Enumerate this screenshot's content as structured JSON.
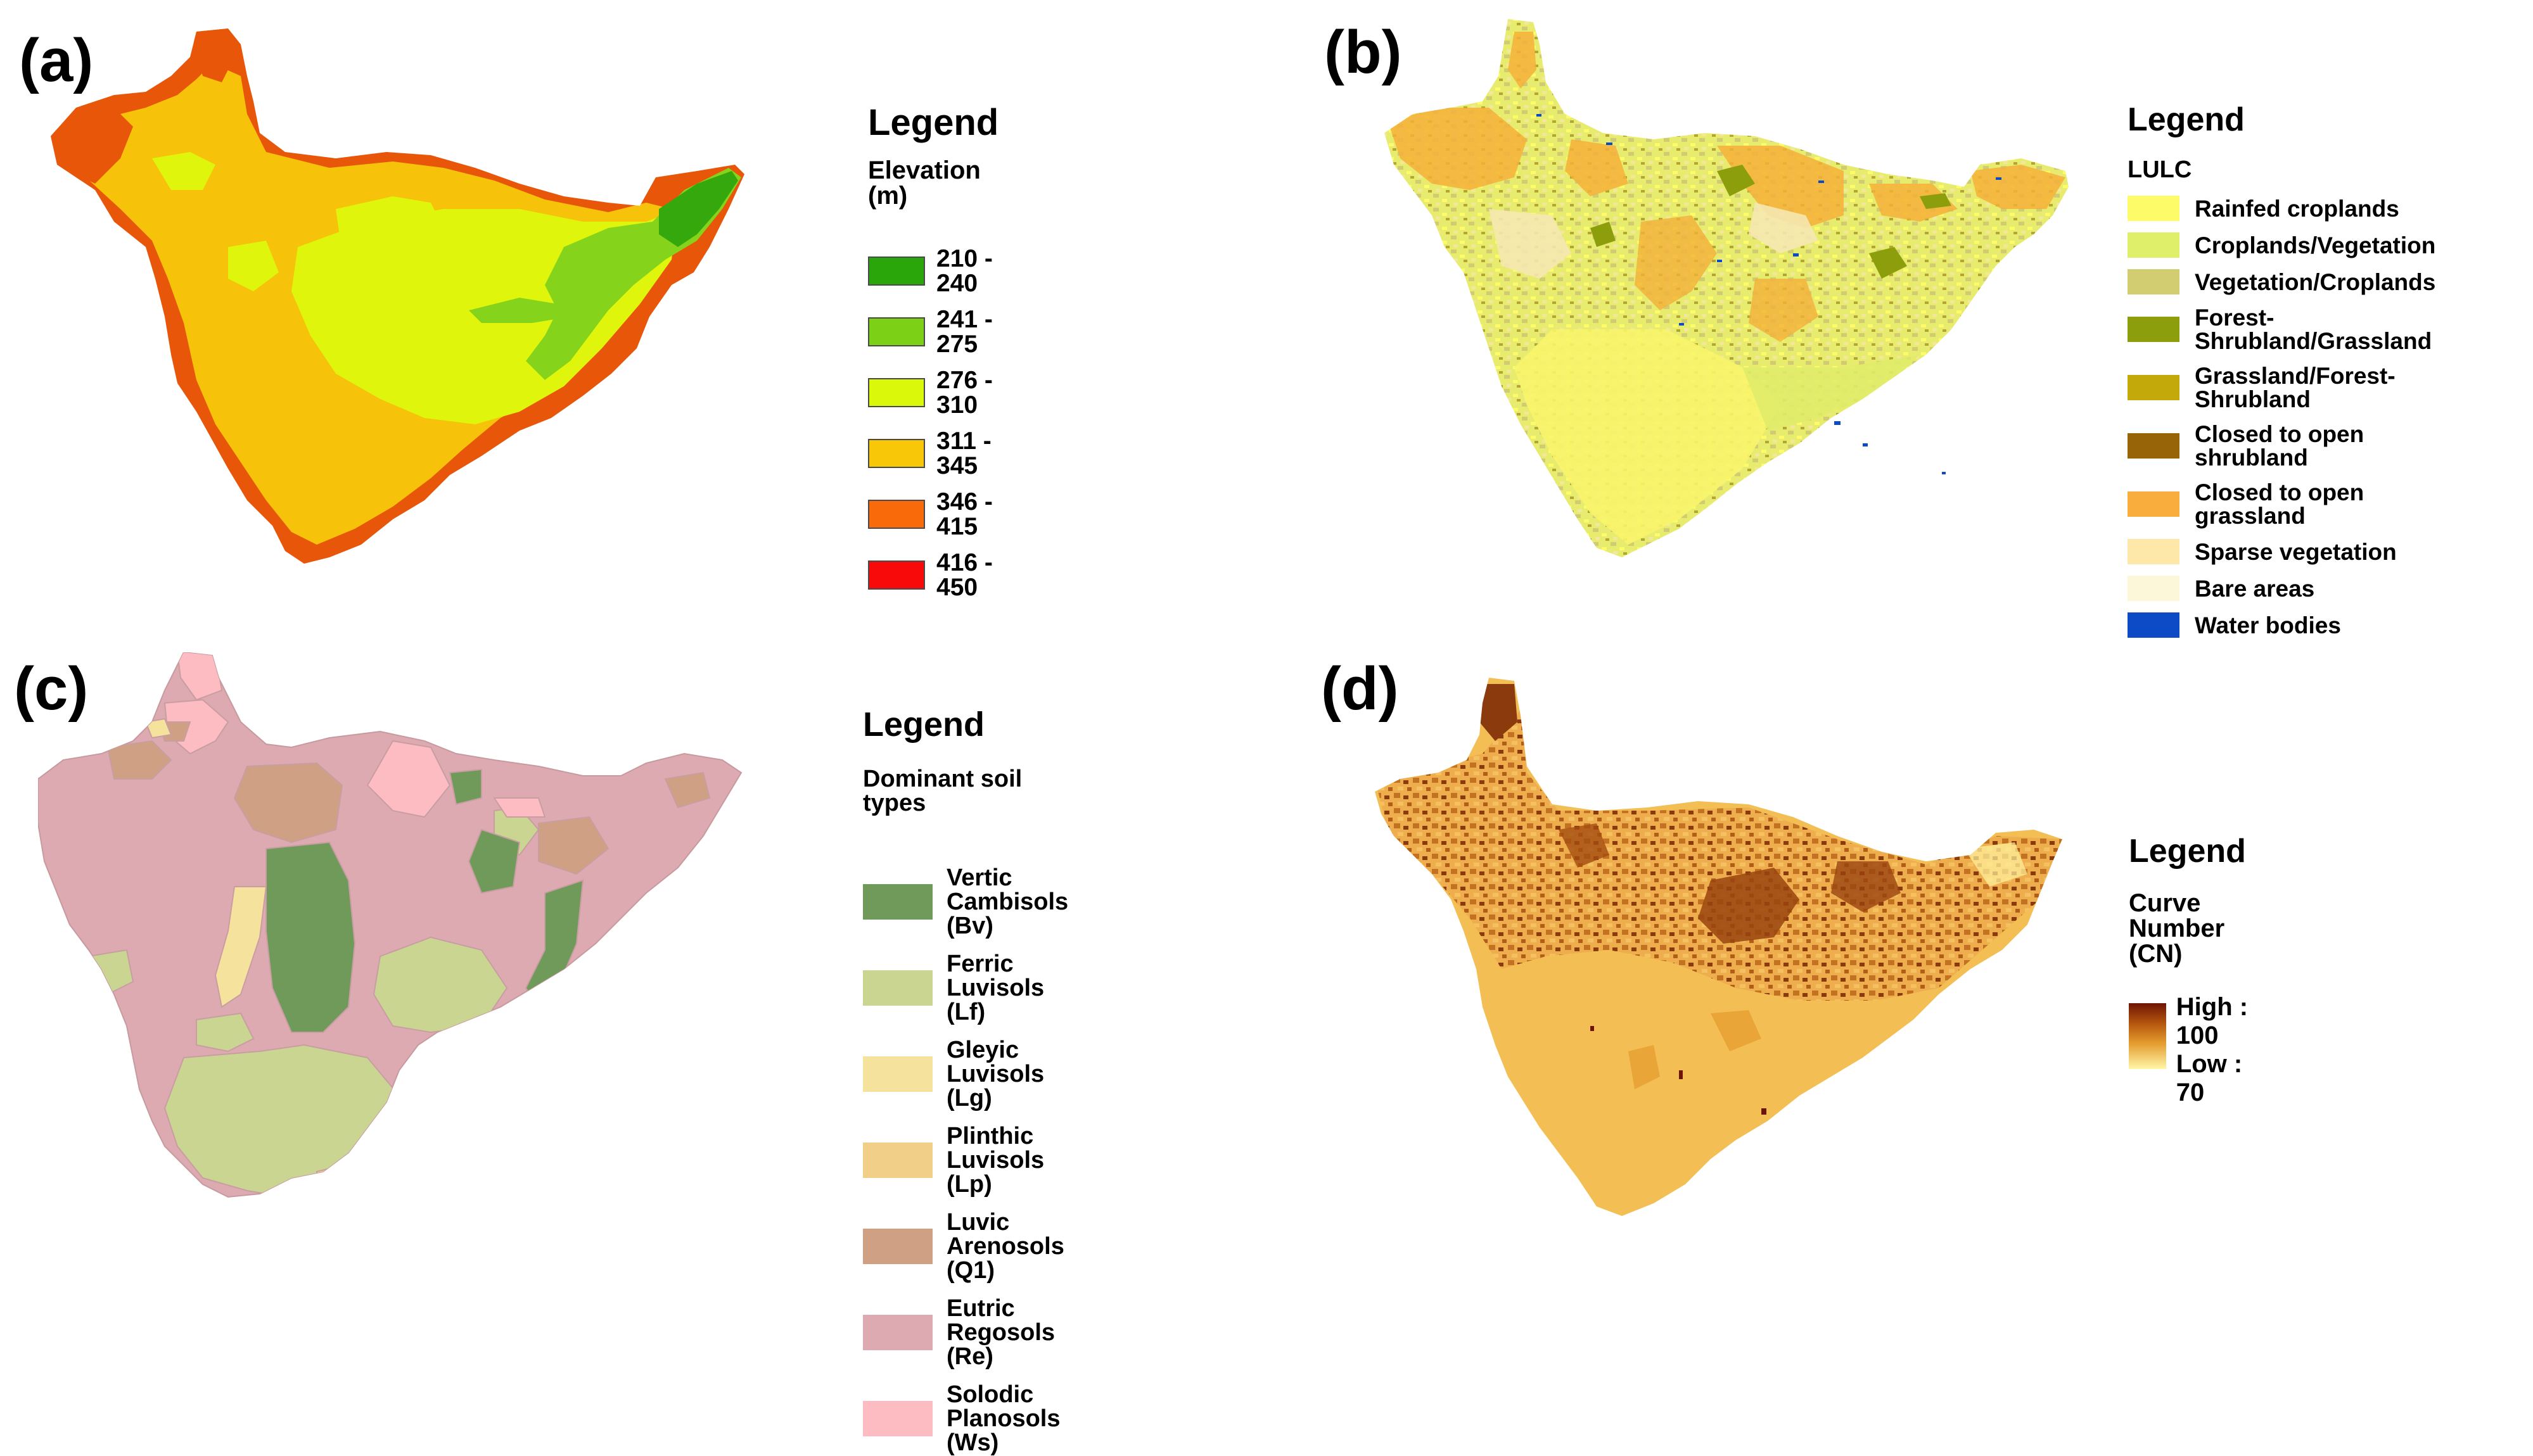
{
  "panels": {
    "a": {
      "letter": "(a)",
      "legend_title": "Legend",
      "legend_subtitle": "Elevation (m)",
      "items": [
        {
          "label": "210 - 240",
          "color": "#2aa50a"
        },
        {
          "label": "241 - 275",
          "color": "#7cd016"
        },
        {
          "label": "276 - 310",
          "color": "#d9f80a"
        },
        {
          "label": "311 - 345",
          "color": "#f8c808"
        },
        {
          "label": "346 - 415",
          "color": "#f86a0a"
        },
        {
          "label": "416 - 450",
          "color": "#f80a0a"
        }
      ]
    },
    "b": {
      "letter": "(b)",
      "legend_title": "Legend",
      "legend_subtitle": "LULC",
      "items": [
        {
          "label": "Rainfed croplands",
          "color": "#fdfc68"
        },
        {
          "label": "Croplands/Vegetation",
          "color": "#e0ef6a"
        },
        {
          "label": "Vegetation/Croplands",
          "color": "#d3cd72"
        },
        {
          "label": "Forest-Shrubland/Grassland",
          "color": "#8c9e0c"
        },
        {
          "label": "Grassland/Forest-Shrubland",
          "color": "#c3a90a"
        },
        {
          "label": "Closed to open shrubland",
          "color": "#976408"
        },
        {
          "label": "Closed to open grassland",
          "color": "#f8ad3c"
        },
        {
          "label": "Sparse vegetation",
          "color": "#fde8aa"
        },
        {
          "label": "Bare areas",
          "color": "#fdf7da"
        },
        {
          "label": "Water bodies",
          "color": "#0c4ac6"
        }
      ]
    },
    "c": {
      "letter": "(c)",
      "legend_title": "Legend",
      "legend_subtitle": "Dominant soil types",
      "items": [
        {
          "label": "Vertic Cambisols (Bv)",
          "color": "#6f9a5a"
        },
        {
          "label": "Ferric Luvisols (Lf)",
          "color": "#c9d591"
        },
        {
          "label": "Gleyic Luvisols (Lg)",
          "color": "#f5e39d"
        },
        {
          "label": "Plinthic Luvisols (Lp)",
          "color": "#f2cf88"
        },
        {
          "label": "Luvic Arenosols (Q1)",
          "color": "#cfa083"
        },
        {
          "label": "Eutric Regosols (Re)",
          "color": "#dcaab0"
        },
        {
          "label": "Solodic Planosols (Ws)",
          "color": "#fdbcc1"
        }
      ]
    },
    "d": {
      "letter": "(d)",
      "legend_title": "Legend",
      "legend_subtitle": "Curve Number (CN)",
      "high_label": "High : 100",
      "low_label": "Low : 70"
    }
  }
}
